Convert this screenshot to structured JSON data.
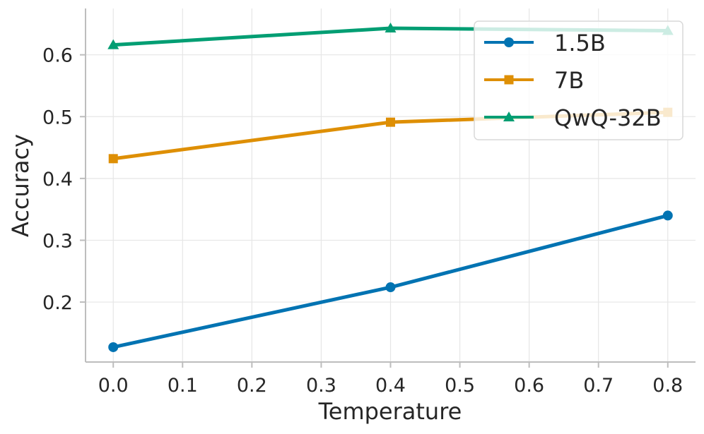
{
  "chart_data": {
    "type": "line",
    "title": "",
    "xlabel": "Temperature",
    "ylabel": "Accuracy",
    "xlim": [
      -0.04,
      0.84
    ],
    "ylim": [
      0.103,
      0.675
    ],
    "xticks": [
      0.0,
      0.1,
      0.2,
      0.3,
      0.4,
      0.5,
      0.6,
      0.7,
      0.8
    ],
    "xtick_labels": [
      "0.0",
      "0.1",
      "0.2",
      "0.3",
      "0.4",
      "0.5",
      "0.6",
      "0.7",
      "0.8"
    ],
    "yticks": [
      0.2,
      0.3,
      0.4,
      0.5,
      0.6
    ],
    "ytick_labels": [
      "0.2",
      "0.3",
      "0.4",
      "0.5",
      "0.6"
    ],
    "grid": true,
    "legend_position": "top-right",
    "series": [
      {
        "name": "1.5B",
        "marker": "circle",
        "color": "#0173b2",
        "x": [
          0.0,
          0.4,
          0.8
        ],
        "values": [
          0.127,
          0.224,
          0.34
        ]
      },
      {
        "name": "7B",
        "marker": "square",
        "color": "#de8f05",
        "x": [
          0.0,
          0.4,
          0.8
        ],
        "values": [
          0.432,
          0.491,
          0.507
        ]
      },
      {
        "name": "QwQ-32B",
        "marker": "triangle",
        "color": "#029e73",
        "x": [
          0.0,
          0.4,
          0.8
        ],
        "values": [
          0.616,
          0.643,
          0.639
        ]
      }
    ]
  }
}
